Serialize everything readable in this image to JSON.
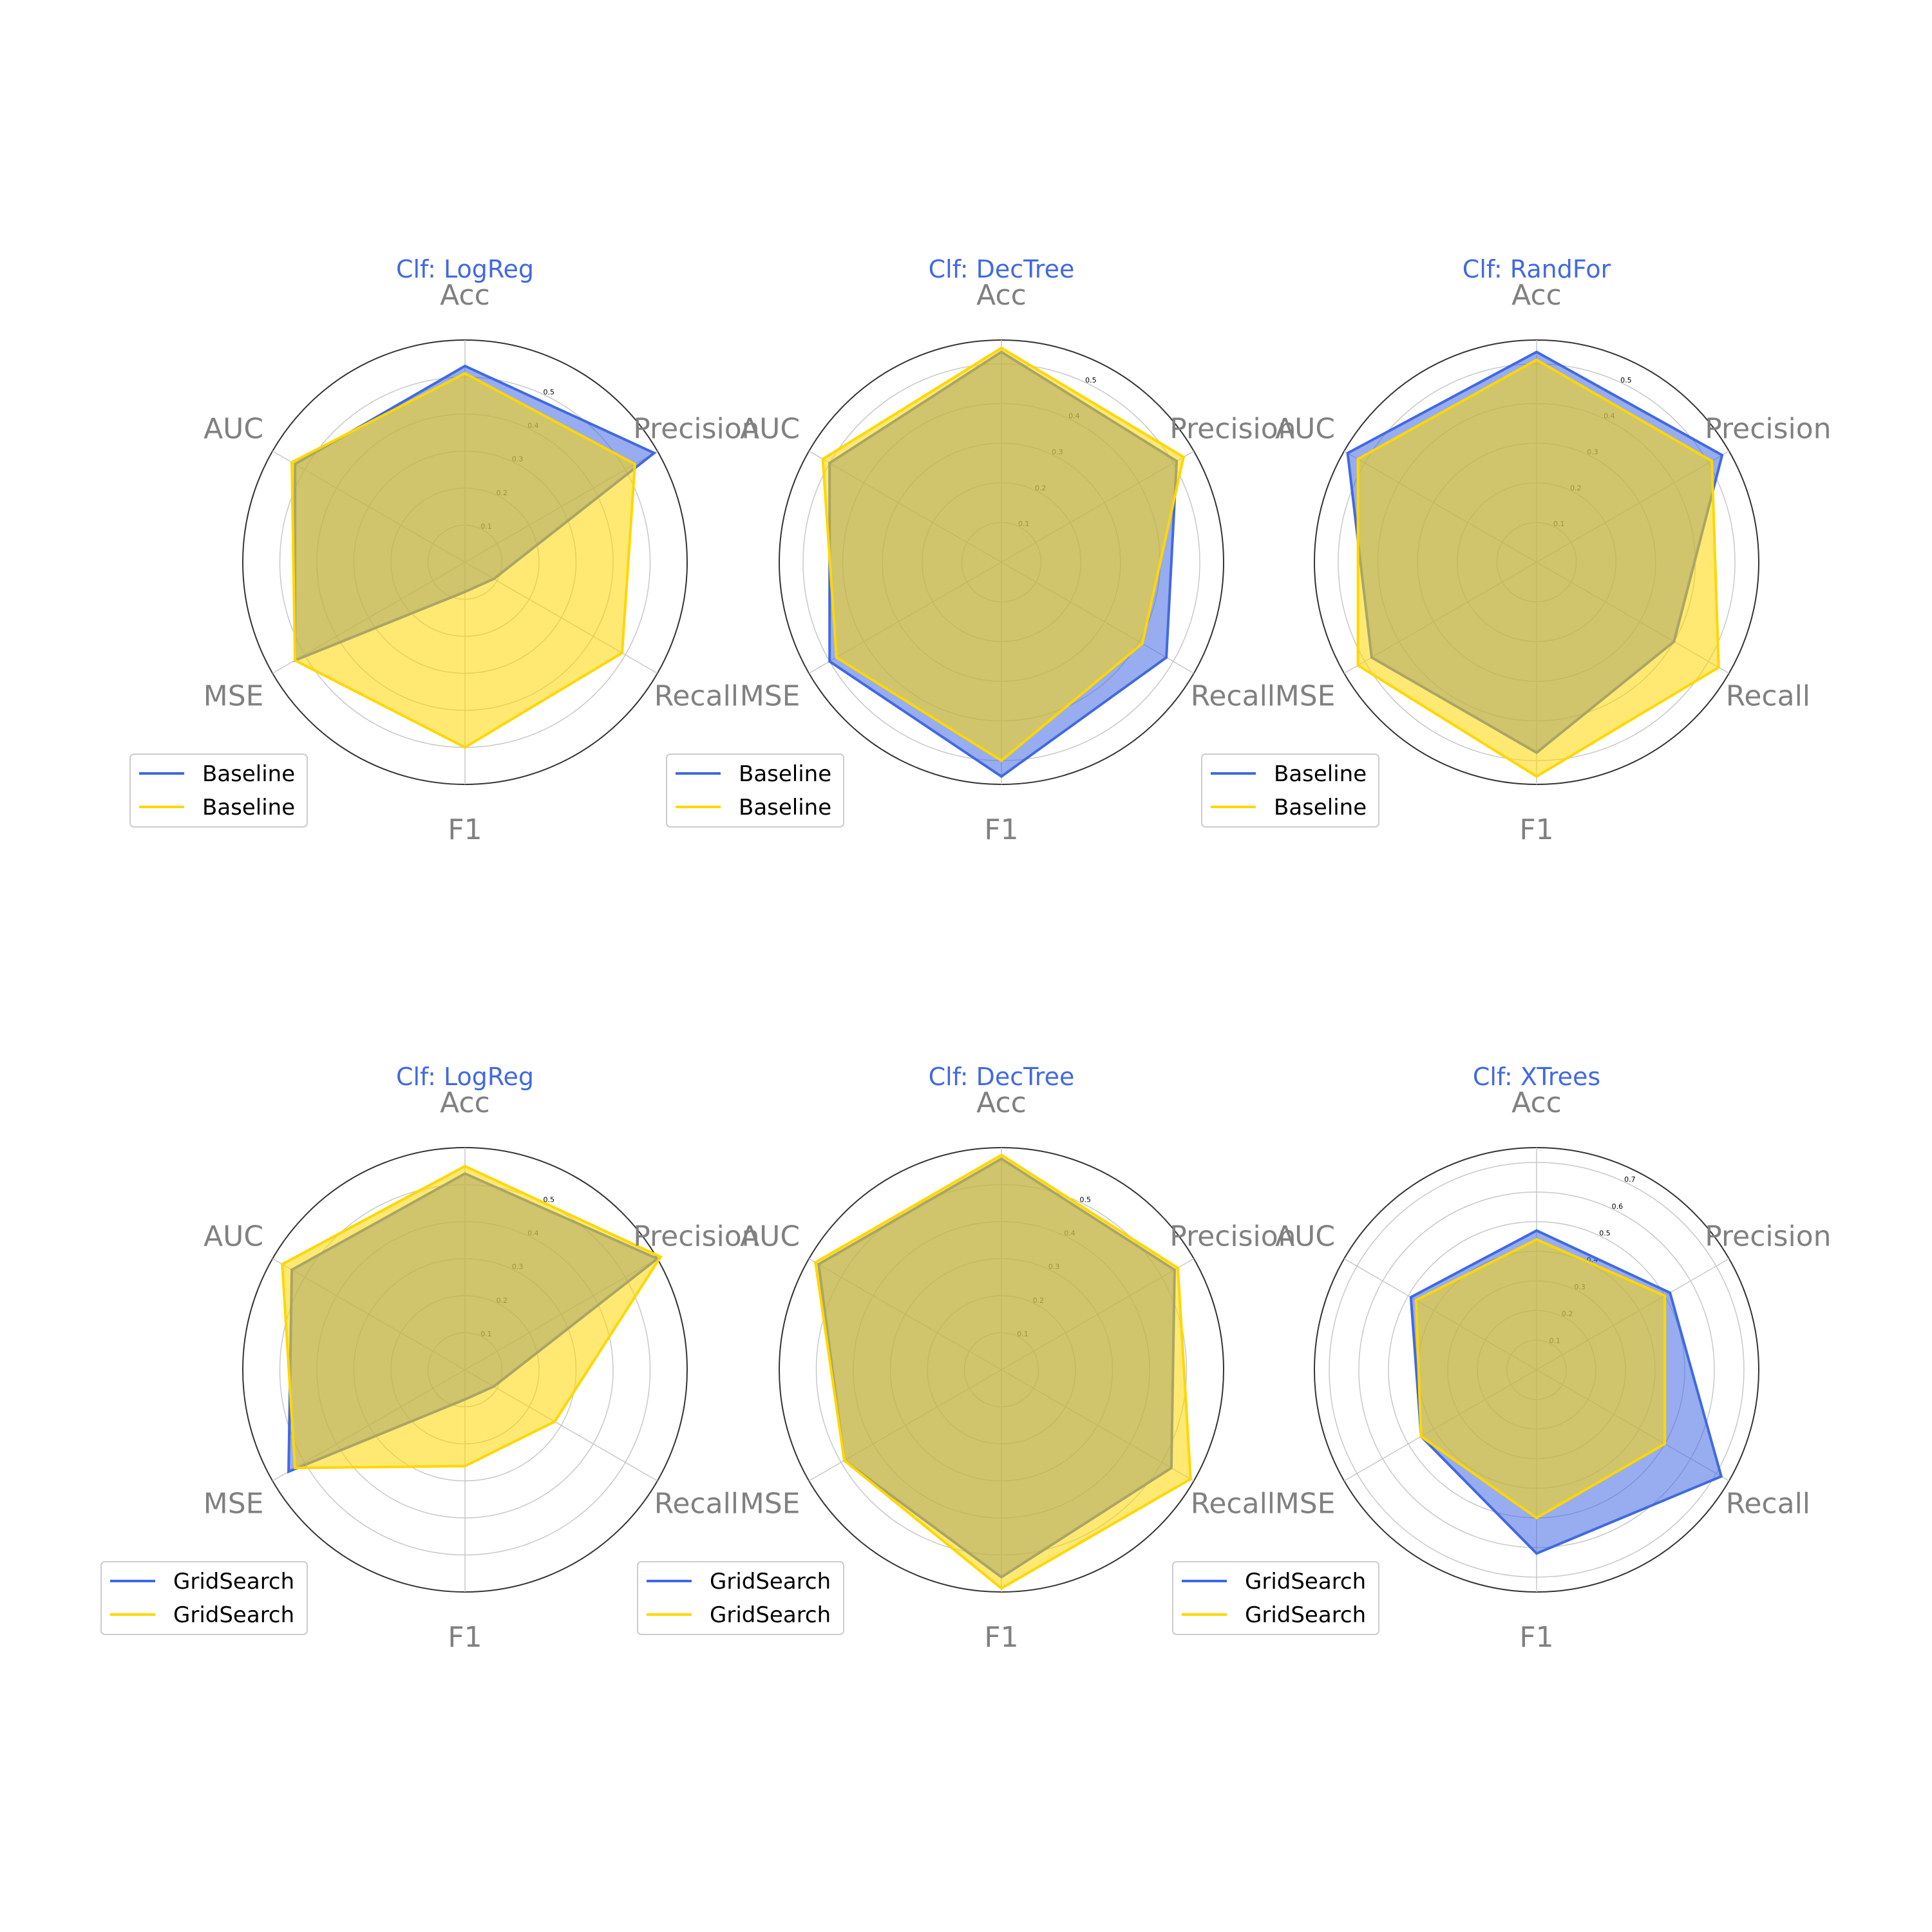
{
  "colors": {
    "series_a": "#4169e1",
    "series_b": "#ffd700",
    "axis_text": "#808080"
  },
  "chart_data": [
    {
      "type": "radar",
      "title": "Clf: LogReg",
      "axes": [
        "Acc",
        "Precision",
        "Recall",
        "F1",
        "MSE",
        "AUC"
      ],
      "rmax": 0.6,
      "rticks": [
        "0.1",
        "0.2",
        "0.3",
        "0.4",
        "0.5"
      ],
      "tick_values": [
        0.1,
        0.2,
        0.3,
        0.4,
        0.5
      ],
      "series": [
        {
          "name": "Baseline",
          "values": [
            0.53,
            0.59,
            0.09,
            0.08,
            0.53,
            0.53
          ]
        },
        {
          "name": "Baseline",
          "values": [
            0.51,
            0.53,
            0.49,
            0.5,
            0.53,
            0.54
          ]
        }
      ]
    },
    {
      "type": "radar",
      "title": "Clf: DecTree",
      "axes": [
        "Acc",
        "Precision",
        "Recall",
        "F1",
        "MSE",
        "AUC"
      ],
      "rmax": 0.56,
      "rticks": [
        "0.1",
        "0.2",
        "0.3",
        "0.4",
        "0.5"
      ],
      "tick_values": [
        0.1,
        0.2,
        0.3,
        0.4,
        0.5
      ],
      "series": [
        {
          "name": "Baseline",
          "values": [
            0.53,
            0.51,
            0.48,
            0.54,
            0.5,
            0.5
          ]
        },
        {
          "name": "Baseline",
          "values": [
            0.54,
            0.53,
            0.41,
            0.5,
            0.48,
            0.52
          ]
        }
      ]
    },
    {
      "type": "radar",
      "title": "Clf: RandFor",
      "axes": [
        "Acc",
        "Precision",
        "Recall",
        "F1",
        "MSE",
        "AUC"
      ],
      "rmax": 0.56,
      "rticks": [
        "0.1",
        "0.2",
        "0.3",
        "0.4",
        "0.5"
      ],
      "tick_values": [
        0.1,
        0.2,
        0.3,
        0.4,
        0.5
      ],
      "series": [
        {
          "name": "Baseline",
          "values": [
            0.53,
            0.54,
            0.4,
            0.48,
            0.48,
            0.55
          ]
        },
        {
          "name": "Baseline",
          "values": [
            0.51,
            0.51,
            0.53,
            0.54,
            0.52,
            0.52
          ]
        }
      ]
    },
    {
      "type": "radar",
      "title": "Clf: LogReg",
      "axes": [
        "Acc",
        "Precision",
        "Recall",
        "F1",
        "MSE",
        "AUC"
      ],
      "rmax": 0.6,
      "rticks": [
        "0.1",
        "0.2",
        "0.3",
        "0.4",
        "0.5"
      ],
      "tick_values": [
        0.1,
        0.2,
        0.3,
        0.4,
        0.5
      ],
      "series": [
        {
          "name": "GridSearch",
          "values": [
            0.53,
            0.6,
            0.09,
            0.08,
            0.55,
            0.54
          ]
        },
        {
          "name": "GridSearch",
          "values": [
            0.55,
            0.61,
            0.28,
            0.26,
            0.53,
            0.57
          ]
        }
      ]
    },
    {
      "type": "radar",
      "title": "Clf: DecTree",
      "axes": [
        "Acc",
        "Precision",
        "Recall",
        "F1",
        "MSE",
        "AUC"
      ],
      "rmax": 0.6,
      "rticks": [
        "0.1",
        "0.2",
        "0.3",
        "0.4",
        "0.5"
      ],
      "tick_values": [
        0.1,
        0.2,
        0.3,
        0.4,
        0.5
      ],
      "series": [
        {
          "name": "GridSearch",
          "values": [
            0.57,
            0.54,
            0.53,
            0.56,
            0.49,
            0.57
          ]
        },
        {
          "name": "GridSearch",
          "values": [
            0.58,
            0.55,
            0.59,
            0.59,
            0.49,
            0.58
          ]
        }
      ]
    },
    {
      "type": "radar",
      "title": "Clf: XTrees",
      "axes": [
        "Acc",
        "Precision",
        "Recall",
        "F1",
        "MSE",
        "AUC"
      ],
      "rmax": 0.75,
      "rticks": [
        "0.1",
        "0.2",
        "0.3",
        "0.4",
        "0.5",
        "0.6",
        "0.7"
      ],
      "tick_values": [
        0.1,
        0.2,
        0.3,
        0.4,
        0.5,
        0.6,
        0.7
      ],
      "series": [
        {
          "name": "GridSearch",
          "values": [
            0.47,
            0.52,
            0.72,
            0.62,
            0.45,
            0.49
          ]
        },
        {
          "name": "GridSearch",
          "values": [
            0.44,
            0.5,
            0.5,
            0.5,
            0.45,
            0.47
          ]
        }
      ]
    }
  ]
}
